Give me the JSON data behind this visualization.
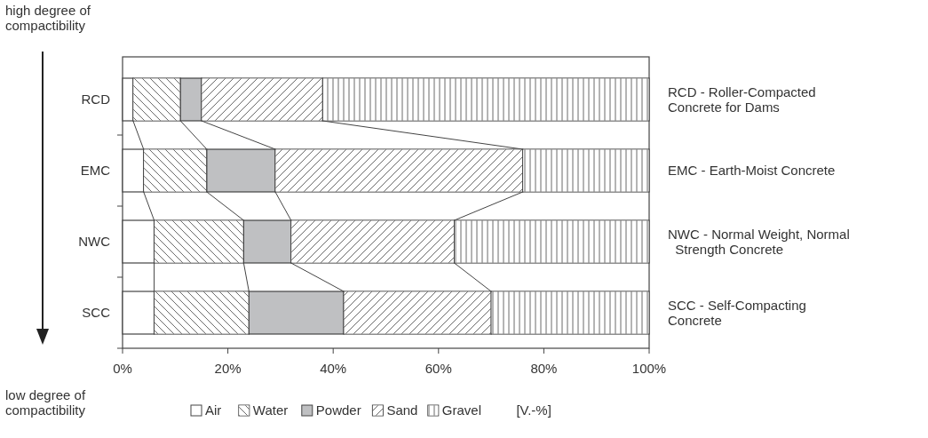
{
  "chart_data": {
    "type": "bar",
    "orientation": "horizontal",
    "stacked": true,
    "categories": [
      "RCD",
      "EMC",
      "NWC",
      "SCC"
    ],
    "series": [
      {
        "name": "Air",
        "color": "#ffffff",
        "values": [
          2,
          4,
          6,
          6
        ]
      },
      {
        "name": "Water",
        "color": "#ffffff",
        "values": [
          9,
          12,
          17,
          18
        ]
      },
      {
        "name": "Powder",
        "color": "#bfc0c2",
        "values": [
          4,
          13,
          9,
          18
        ]
      },
      {
        "name": "Sand",
        "color": "#ffffff",
        "values": [
          23,
          47,
          31,
          28
        ]
      },
      {
        "name": "Gravel",
        "color": "#ffffff",
        "values": [
          62,
          24,
          37,
          30
        ]
      }
    ],
    "xlim": [
      0,
      100
    ],
    "xticks": [
      {
        "value": 0,
        "label": "0%"
      },
      {
        "value": 20,
        "label": "20%"
      },
      {
        "value": 40,
        "label": "40%"
      },
      {
        "value": 60,
        "label": "60%"
      },
      {
        "value": 80,
        "label": "80%"
      },
      {
        "value": 100,
        "label": "100%"
      }
    ],
    "grid": false,
    "legend": "bottom",
    "legend_title": "[V.-%]",
    "annotations": [
      "high degree of\ncompactibility",
      "low degree of\ncompactibility",
      "RCD - Roller-Compacted\nConcrete for Dams",
      "EMC - Earth-Moist Concrete",
      "NWC - Normal Weight, Normal\n  Strength Concrete",
      "SCC - Self-Compacting\nConcrete"
    ]
  }
}
